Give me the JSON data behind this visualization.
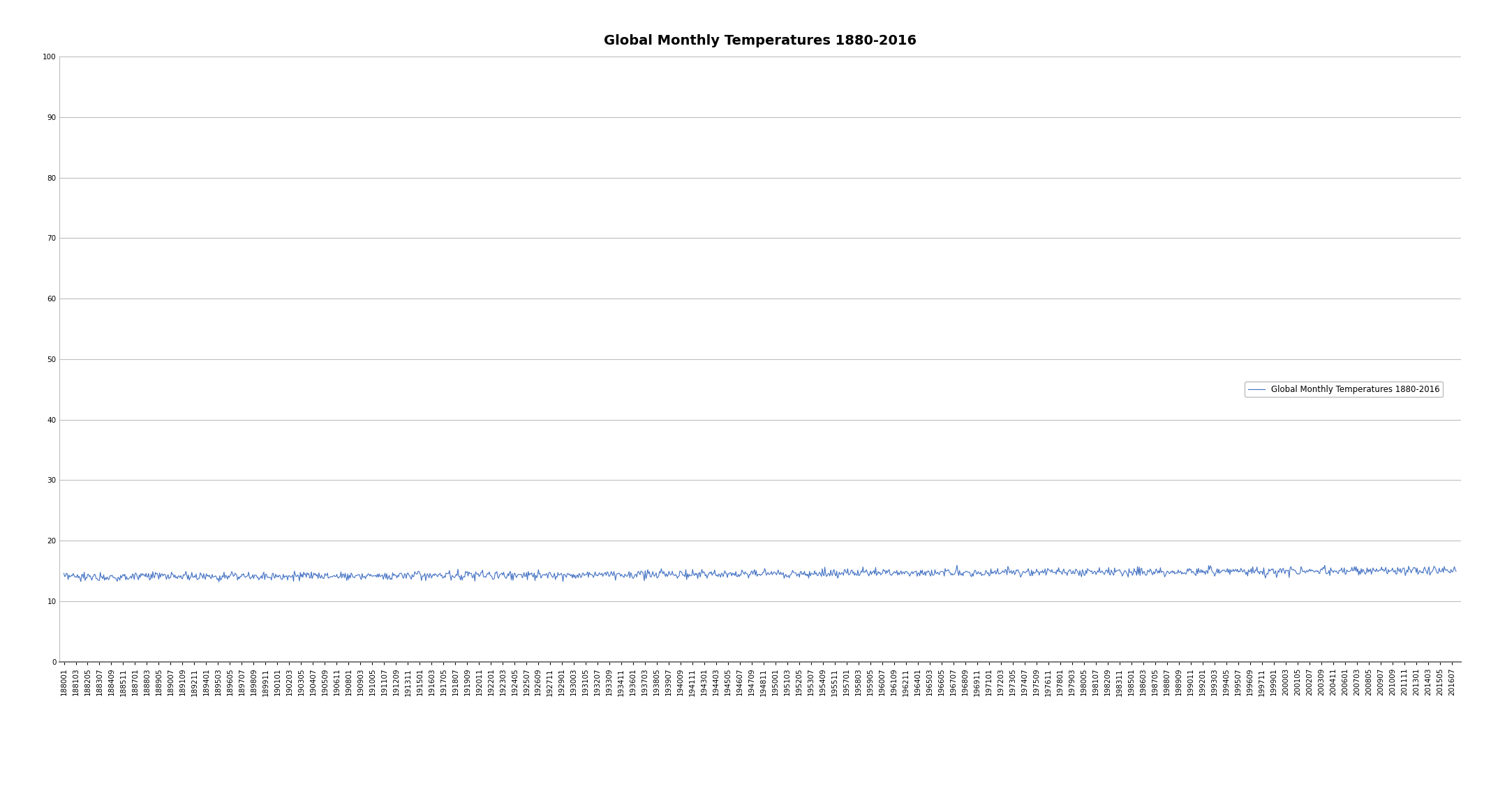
{
  "title": "Global Monthly Temperatures 1880-2016",
  "line_color": "#4472C4",
  "line_width": 0.8,
  "background_color": "#FFFFFF",
  "ylim": [
    0,
    100
  ],
  "yticks": [
    0,
    10,
    20,
    30,
    40,
    50,
    60,
    70,
    80,
    90,
    100
  ],
  "grid_color": "#BEBEBE",
  "legend_label": "Global Monthly Temperatures 1880-2016",
  "title_fontsize": 14,
  "tick_fontsize": 7.5,
  "base_temp": 14.0,
  "trend_per_year": 0.008,
  "noise_std": 0.35,
  "seasonal_amp": 0.15
}
